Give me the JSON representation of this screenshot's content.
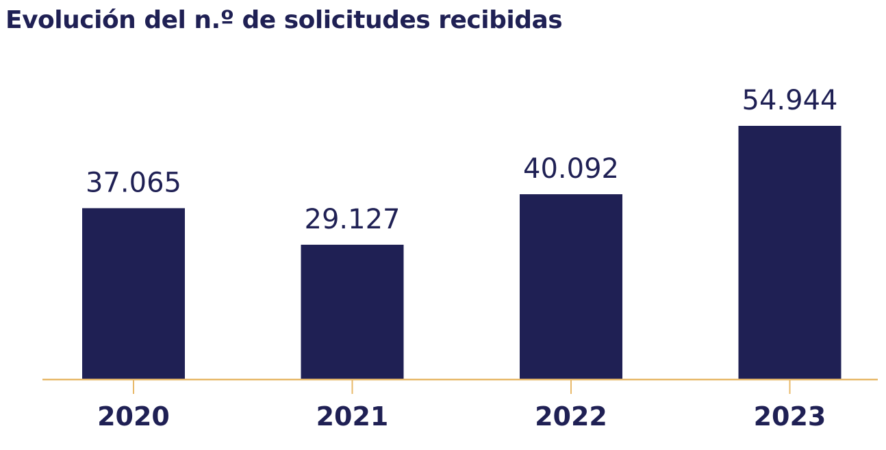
{
  "colors": {
    "bar": "#1f2054",
    "text": "#1f2054",
    "axis": "#e8b96a",
    "background": "#ffffff"
  },
  "chart_data": {
    "type": "bar",
    "title": "Evolución del n.º de solicitudes recibidas",
    "xlabel": "",
    "ylabel": "",
    "categories": [
      "2020",
      "2021",
      "2022",
      "2023"
    ],
    "values": [
      37065,
      29127,
      40092,
      54944
    ],
    "value_labels": [
      "37.065",
      "29.127",
      "40.092",
      "54.944"
    ],
    "ylim": [
      0,
      60000
    ],
    "grid": false,
    "legend": "none"
  }
}
